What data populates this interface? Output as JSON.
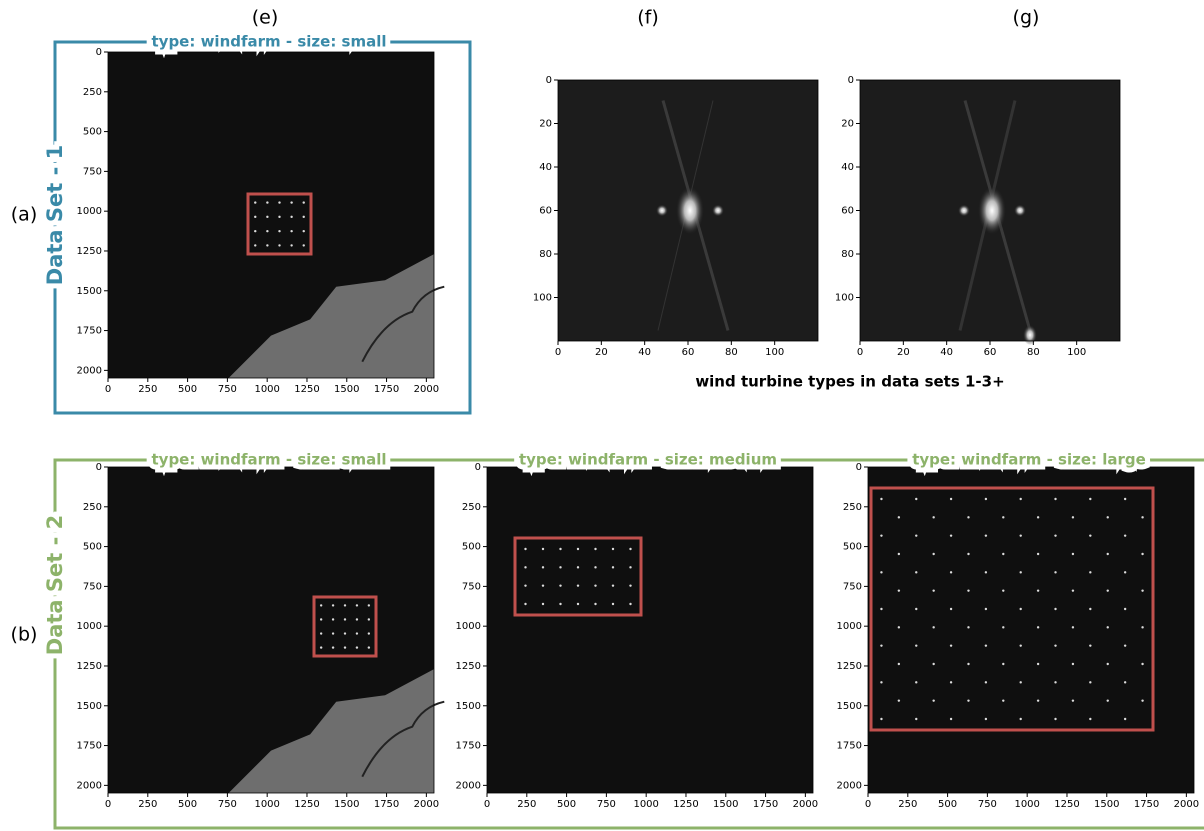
{
  "panel_labels": {
    "e": "(e)",
    "f": "(f)",
    "g": "(g)",
    "a": "(a)",
    "b": "(b)"
  },
  "data_sets": [
    {
      "name": "Data Set - 1",
      "panels": [
        {
          "title": "type: windfarm - size: small",
          "xlim": [
            0,
            2048
          ],
          "ylim": [
            0,
            2048
          ],
          "xticks": [
            0,
            250,
            500,
            750,
            1000,
            1250,
            1500,
            1750,
            2000
          ],
          "yticks": [
            0,
            250,
            500,
            750,
            1000,
            1250,
            1500,
            1750,
            2000
          ]
        }
      ]
    },
    {
      "name": "Data Set - 2",
      "panels": [
        {
          "title": "type: windfarm - size: small",
          "xlim": [
            0,
            2048
          ],
          "ylim": [
            0,
            2048
          ],
          "xticks": [
            0,
            250,
            500,
            750,
            1000,
            1250,
            1500,
            1750,
            2000
          ],
          "yticks": [
            0,
            250,
            500,
            750,
            1000,
            1250,
            1500,
            1750,
            2000
          ]
        },
        {
          "title": "type: windfarm - size: medium",
          "xlim": [
            0,
            2048
          ],
          "ylim": [
            0,
            2048
          ],
          "xticks": [
            0,
            250,
            500,
            750,
            1000,
            1250,
            1500,
            1750,
            2000
          ],
          "yticks": [
            0,
            250,
            500,
            750,
            1000,
            1250,
            1500,
            1750,
            2000
          ]
        },
        {
          "title": "type: windfarm - size: large",
          "xlim": [
            0,
            2048
          ],
          "ylim": [
            0,
            2048
          ],
          "xticks": [
            0,
            250,
            500,
            750,
            1000,
            1250,
            1500,
            1750,
            2000
          ],
          "yticks": [
            0,
            250,
            500,
            750,
            1000,
            1250,
            1500,
            1750,
            2000
          ]
        }
      ]
    }
  ],
  "turbine_types": {
    "caption": "wind turbine types in data sets 1-3+",
    "panels": [
      {
        "xlim": [
          0,
          120
        ],
        "ylim": [
          0,
          120
        ],
        "xticks": [
          0,
          20,
          40,
          60,
          80,
          100
        ],
        "yticks": [
          0,
          20,
          40,
          60,
          80,
          100
        ]
      },
      {
        "xlim": [
          0,
          120
        ],
        "ylim": [
          0,
          120
        ],
        "xticks": [
          0,
          20,
          40,
          60,
          80,
          100
        ],
        "yticks": [
          0,
          20,
          40,
          60,
          80,
          100
        ]
      }
    ]
  }
}
